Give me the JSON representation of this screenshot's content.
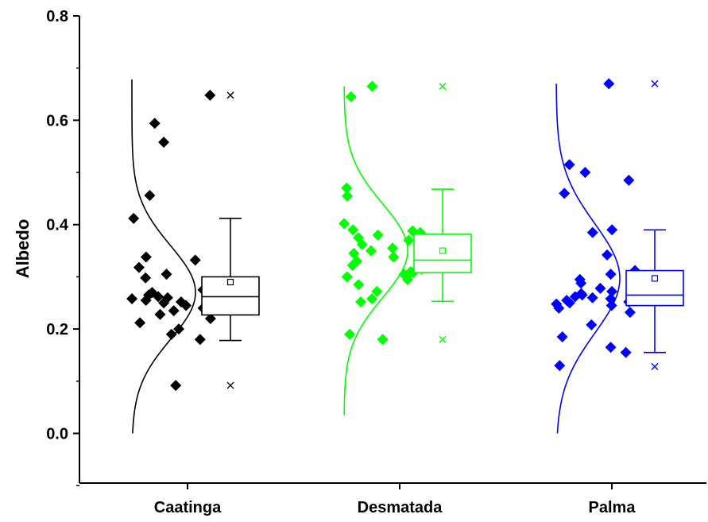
{
  "chart_data": {
    "type": "box",
    "ylabel": "Albedo",
    "xlabel": "",
    "ylim": [
      -0.1,
      0.8
    ],
    "yticks": [
      "0.0",
      "0.2",
      "0.4",
      "0.6",
      "0.8"
    ],
    "grid": false,
    "legend": "none",
    "categories": [
      "Caatinga",
      "Desmatada",
      "Palma"
    ],
    "groups": [
      {
        "category": "Caatinga",
        "color": "#000000",
        "points": [
          0.648,
          0.594,
          0.558,
          0.456,
          0.412,
          0.338,
          0.332,
          0.318,
          0.305,
          0.298,
          0.275,
          0.27,
          0.268,
          0.265,
          0.262,
          0.26,
          0.258,
          0.255,
          0.252,
          0.25,
          0.245,
          0.24,
          0.235,
          0.228,
          0.22,
          0.212,
          0.2,
          0.19,
          0.18,
          0.092
        ],
        "box": {
          "q1": 0.227,
          "median": 0.262,
          "q3": 0.3,
          "whisker_low": 0.178,
          "whisker_high": 0.412,
          "mean": 0.29,
          "outliers": [
            0.648,
            0.092
          ]
        },
        "curve": {
          "mean": 0.27,
          "sd": 0.09,
          "ymin": 0.0,
          "ymax": 0.678
        }
      },
      {
        "category": "Desmatada",
        "color": "#00ff00",
        "points": [
          0.665,
          0.645,
          0.47,
          0.455,
          0.402,
          0.39,
          0.388,
          0.385,
          0.38,
          0.375,
          0.37,
          0.362,
          0.355,
          0.35,
          0.345,
          0.338,
          0.33,
          0.322,
          0.315,
          0.31,
          0.308,
          0.305,
          0.3,
          0.295,
          0.285,
          0.272,
          0.258,
          0.252,
          0.19,
          0.18
        ],
        "box": {
          "q1": 0.308,
          "median": 0.332,
          "q3": 0.382,
          "whisker_low": 0.253,
          "whisker_high": 0.468,
          "mean": 0.35,
          "outliers": [
            0.665,
            0.18
          ]
        },
        "curve": {
          "mean": 0.35,
          "sd": 0.09,
          "ymin": 0.035,
          "ymax": 0.665
        }
      },
      {
        "category": "Palma",
        "color": "#0000ff",
        "points": [
          0.67,
          0.515,
          0.5,
          0.485,
          0.46,
          0.39,
          0.385,
          0.342,
          0.312,
          0.305,
          0.295,
          0.288,
          0.282,
          0.278,
          0.272,
          0.268,
          0.265,
          0.262,
          0.26,
          0.258,
          0.255,
          0.252,
          0.25,
          0.248,
          0.245,
          0.24,
          0.232,
          0.208,
          0.185,
          0.165,
          0.155,
          0.13
        ],
        "box": {
          "q1": 0.245,
          "median": 0.265,
          "q3": 0.312,
          "whisker_low": 0.155,
          "whisker_high": 0.39,
          "mean": 0.297,
          "outliers": [
            0.67,
            0.128
          ]
        },
        "curve": {
          "mean": 0.297,
          "sd": 0.105,
          "ymin": 0.0,
          "ymax": 0.67
        }
      }
    ]
  }
}
